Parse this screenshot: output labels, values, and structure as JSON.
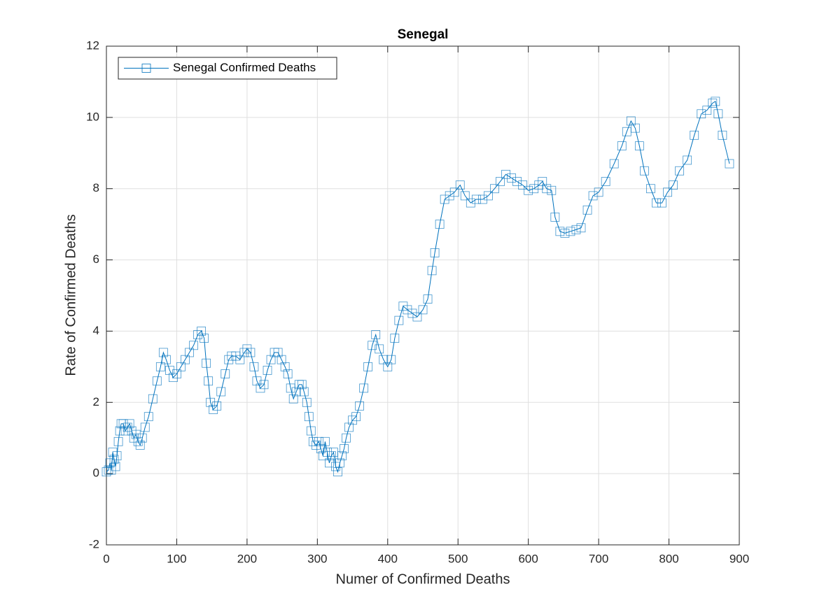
{
  "chart_data": {
    "type": "line",
    "title": "Senegal",
    "x_label": "Numer of Confirmed Deaths",
    "y_label": "Rate of Confirmed Deaths",
    "x": [
      0,
      3,
      5,
      7,
      9,
      11,
      13,
      15,
      17,
      19,
      21,
      24,
      27,
      30,
      33,
      36,
      39,
      42,
      45,
      48,
      51,
      55,
      60,
      66,
      72,
      77,
      81,
      85,
      90,
      95,
      100,
      106,
      112,
      118,
      124,
      130,
      135,
      139,
      142,
      145,
      148,
      152,
      157,
      163,
      169,
      174,
      178,
      184,
      190,
      196,
      200,
      205,
      210,
      214,
      219,
      224,
      229,
      234,
      239,
      244,
      249,
      254,
      258,
      262,
      266,
      270,
      274,
      278,
      281,
      285,
      288,
      291,
      294,
      298,
      302,
      305,
      308,
      311,
      314,
      317,
      320,
      323,
      326,
      329,
      332,
      335,
      338,
      341,
      345,
      350,
      355,
      360,
      366,
      372,
      378,
      383,
      388,
      394,
      400,
      405,
      410,
      416,
      422,
      428,
      435,
      442,
      450,
      457,
      463,
      467,
      474,
      481,
      488,
      495,
      503,
      510,
      518,
      526,
      535,
      543,
      552,
      560,
      568,
      576,
      584,
      592,
      600,
      608,
      615,
      620,
      626,
      633,
      638,
      645,
      652,
      660,
      668,
      675,
      684,
      692,
      700,
      710,
      722,
      733,
      740,
      746,
      752,
      758,
      765,
      774,
      782,
      790,
      798,
      806,
      815,
      826,
      836,
      846,
      854,
      862,
      866,
      870,
      876,
      886
    ],
    "series": [
      {
        "name": "Senegal Confirmed Deaths",
        "color": "#0072bd",
        "values": [
          0.05,
          0.1,
          0.3,
          0.1,
          0.6,
          0.4,
          0.2,
          0.5,
          0.9,
          1.2,
          1.4,
          1.4,
          1.2,
          1.3,
          1.4,
          1.2,
          1.0,
          1.1,
          0.9,
          0.8,
          1.0,
          1.3,
          1.6,
          2.1,
          2.6,
          3.0,
          3.4,
          3.2,
          2.9,
          2.7,
          2.8,
          3.0,
          3.2,
          3.4,
          3.6,
          3.9,
          4.0,
          3.8,
          3.1,
          2.6,
          2.0,
          1.8,
          1.9,
          2.3,
          2.8,
          3.2,
          3.3,
          3.3,
          3.2,
          3.4,
          3.5,
          3.4,
          3.0,
          2.6,
          2.4,
          2.5,
          2.9,
          3.2,
          3.4,
          3.4,
          3.2,
          3.0,
          2.8,
          2.4,
          2.1,
          2.3,
          2.5,
          2.5,
          2.3,
          2.0,
          1.6,
          1.2,
          0.9,
          0.8,
          0.9,
          0.7,
          0.5,
          0.9,
          0.6,
          0.3,
          0.5,
          0.6,
          0.2,
          0.05,
          0.3,
          0.5,
          0.7,
          1.0,
          1.3,
          1.5,
          1.6,
          1.9,
          2.4,
          3.0,
          3.6,
          3.9,
          3.5,
          3.2,
          3.0,
          3.2,
          3.8,
          4.3,
          4.7,
          4.6,
          4.5,
          4.4,
          4.6,
          4.9,
          5.7,
          6.2,
          7.0,
          7.7,
          7.8,
          7.9,
          8.1,
          7.8,
          7.6,
          7.7,
          7.7,
          7.8,
          8.0,
          8.2,
          8.4,
          8.3,
          8.2,
          8.1,
          7.95,
          8.0,
          8.1,
          8.2,
          8.0,
          7.95,
          7.2,
          6.8,
          6.75,
          6.8,
          6.85,
          6.9,
          7.4,
          7.8,
          7.9,
          8.2,
          8.7,
          9.2,
          9.6,
          9.9,
          9.7,
          9.2,
          8.5,
          8.0,
          7.6,
          7.6,
          7.9,
          8.1,
          8.5,
          8.8,
          9.5,
          10.1,
          10.2,
          10.4,
          10.45,
          10.1,
          9.5,
          8.7
        ]
      }
    ],
    "xlim": [
      0,
      900
    ],
    "ylim": [
      -2,
      12
    ],
    "xticks": [
      0,
      100,
      200,
      300,
      400,
      500,
      600,
      700,
      800,
      900
    ],
    "yticks": [
      -2,
      0,
      2,
      4,
      6,
      8,
      10,
      12
    ],
    "grid": true,
    "marker": "square",
    "legend_position": "upper-left"
  }
}
